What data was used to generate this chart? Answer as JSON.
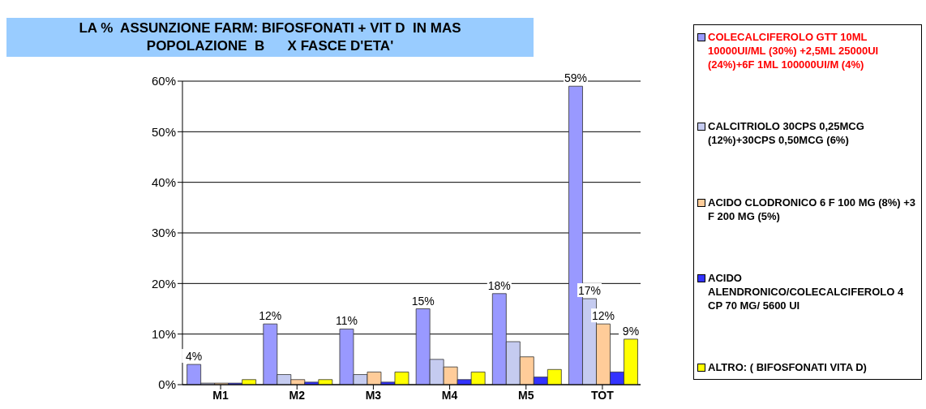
{
  "chart_data": {
    "type": "bar",
    "title": "LA %  ASSUNZIONE FARM: BIFOSFONATI + VIT D  IN MAS",
    "subtitle": "POPOLAZIONE  B      X FASCE D'ETA'",
    "categories": [
      "M1",
      "M2",
      "M3",
      "M4",
      "M5",
      "TOT"
    ],
    "series": [
      {
        "name": "COLECALCIFEROLO GTT 10ML 10000UI/ML  (30%) +2,5ML 25000UI (24%)+6F 1ML 100000UI/M  (4%)",
        "color": "#9999ff",
        "values": [
          4,
          12,
          11,
          15,
          18,
          59
        ],
        "value_labels": [
          "4%",
          "12%",
          "11%",
          "15%",
          "18%",
          "59%"
        ]
      },
      {
        "name": "CALCITRIOLO 30CPS 0,25MCG (12%)+30CPS  0,50MCG (6%)",
        "color": "#c5cbf0",
        "values": [
          0.3,
          2,
          2,
          5,
          8.5,
          17
        ],
        "value_labels": [
          null,
          null,
          null,
          null,
          null,
          "17%"
        ]
      },
      {
        "name": "ACIDO CLODRONICO 6 F 100 MG (8%) +3 F 200 MG (5%)",
        "color": "#ffcc99",
        "values": [
          0.3,
          1,
          2.5,
          3.5,
          5.5,
          12
        ],
        "value_labels": [
          null,
          null,
          null,
          null,
          null,
          "12%"
        ]
      },
      {
        "name": "ACIDO ALENDRONICO/COLECALCIFEROLO 4 CP 70 MG/ 5600  UI",
        "color": "#3333ff",
        "values": [
          0.3,
          0.5,
          0.5,
          1,
          1.5,
          2.5
        ]
      },
      {
        "name": "ALTRO: ( BIFOSFONATI VITA D)",
        "color": "#ffff00",
        "values": [
          1,
          1,
          2.5,
          2.5,
          3,
          9
        ],
        "value_labels": [
          null,
          null,
          null,
          null,
          null,
          "9%"
        ]
      }
    ],
    "ylim": [
      0,
      60
    ],
    "yticks": [
      {
        "value": 0,
        "label": "0%"
      },
      {
        "value": 10,
        "label": "10%"
      },
      {
        "value": 20,
        "label": "20%"
      },
      {
        "value": 30,
        "label": "30%"
      },
      {
        "value": 40,
        "label": "40%"
      },
      {
        "value": 50,
        "label": "50%"
      },
      {
        "value": 60,
        "label": "60%"
      }
    ],
    "grid": "y",
    "legend": "right"
  }
}
